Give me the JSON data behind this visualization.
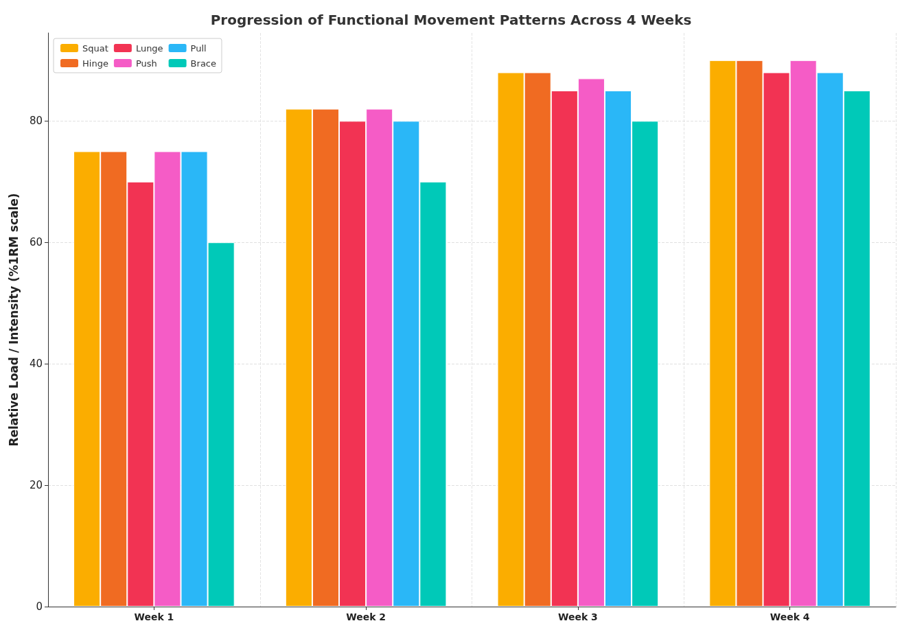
{
  "chart_data": {
    "type": "bar",
    "title": "Progression of Functional Movement Patterns Across 4 Weeks",
    "ylabel": "Relative Load / Intensity (%1RM scale)",
    "categories": [
      "Week 1",
      "Week 2",
      "Week 3",
      "Week 4"
    ],
    "series": [
      {
        "name": "Squat",
        "color": "#fbad00",
        "values": [
          75,
          82,
          88,
          90
        ]
      },
      {
        "name": "Hinge",
        "color": "#f06b22",
        "values": [
          75,
          82,
          88,
          90
        ]
      },
      {
        "name": "Lunge",
        "color": "#f23353",
        "values": [
          70,
          80,
          85,
          88
        ]
      },
      {
        "name": "Push",
        "color": "#f55cc6",
        "values": [
          75,
          82,
          87,
          90
        ]
      },
      {
        "name": "Pull",
        "color": "#2ab7f7",
        "values": [
          75,
          80,
          85,
          88
        ]
      },
      {
        "name": "Brace",
        "color": "#00c9b8",
        "values": [
          60,
          70,
          80,
          85
        ]
      }
    ],
    "ylim": [
      0,
      94.5
    ],
    "yticks": [
      0,
      20,
      40,
      60,
      80
    ],
    "grid": true,
    "legend": "top left"
  }
}
